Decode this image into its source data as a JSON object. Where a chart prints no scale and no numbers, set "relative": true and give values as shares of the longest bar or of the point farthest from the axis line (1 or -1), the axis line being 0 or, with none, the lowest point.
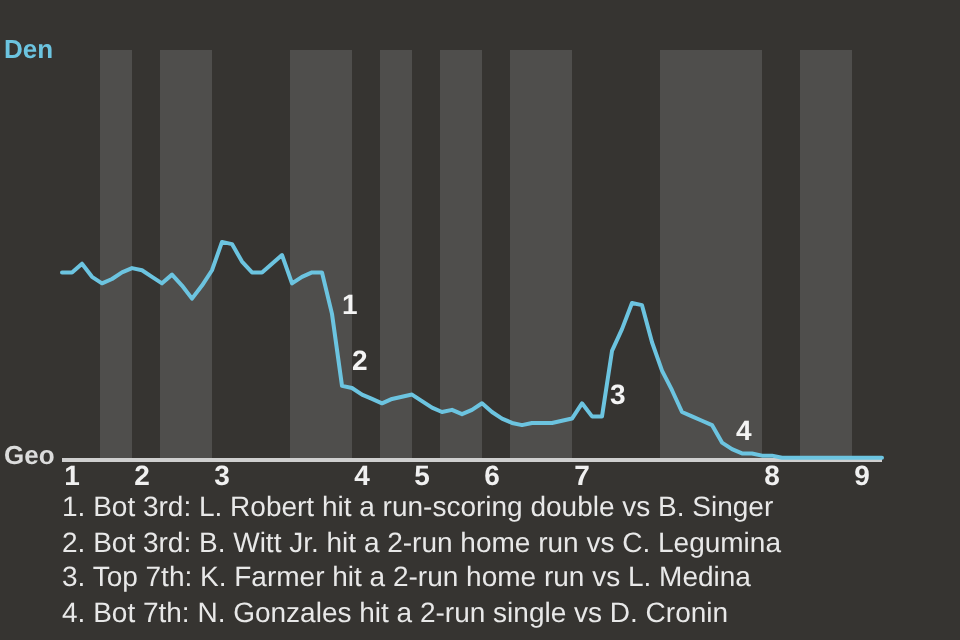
{
  "chart_data": {
    "type": "line",
    "marker": "none",
    "relative": true,
    "categories": [
      null,
      "1",
      null,
      null,
      null,
      null,
      null,
      null,
      "2",
      null,
      null,
      null,
      null,
      null,
      null,
      null,
      "3",
      null,
      null,
      null,
      null,
      null,
      null,
      null,
      null,
      null,
      null,
      null,
      null,
      null,
      "4",
      null,
      null,
      null,
      null,
      null,
      "5",
      null,
      null,
      null,
      null,
      null,
      null,
      "6",
      null,
      null,
      null,
      null,
      null,
      null,
      null,
      null,
      "7",
      null,
      null,
      null,
      null,
      null,
      null,
      null,
      null,
      null,
      null,
      null,
      null,
      null,
      null,
      null,
      null,
      null,
      null,
      "8",
      null,
      null,
      null,
      null,
      null,
      null,
      null,
      null,
      "9",
      null,
      null
    ],
    "series": [
      {
        "color": "#6cc4e0",
        "values": [
          0.86,
          0.86,
          0.9,
          0.84,
          0.81,
          0.83,
          0.86,
          0.88,
          0.87,
          0.84,
          0.81,
          0.85,
          0.8,
          0.74,
          0.8,
          0.87,
          1.0,
          0.99,
          0.91,
          0.86,
          0.86,
          0.9,
          0.94,
          0.81,
          0.84,
          0.86,
          0.86,
          0.67,
          0.34,
          0.33,
          0.3,
          0.28,
          0.26,
          0.28,
          0.29,
          0.3,
          0.27,
          0.24,
          0.22,
          0.23,
          0.21,
          0.23,
          0.26,
          0.22,
          0.19,
          0.17,
          0.16,
          0.17,
          0.17,
          0.17,
          0.18,
          0.19,
          0.26,
          0.2,
          0.2,
          0.5,
          0.6,
          0.72,
          0.71,
          0.54,
          0.41,
          0.32,
          0.22,
          0.2,
          0.18,
          0.16,
          0.08,
          0.05,
          0.03,
          0.03,
          0.02,
          0.02,
          0.01,
          0.01,
          0.01,
          0.01,
          0.01,
          0.01,
          0.01,
          0.01,
          0.01,
          0.01,
          0.01
        ]
      }
    ],
    "annotations": [
      "Den",
      "Geo",
      "1",
      "2",
      "3",
      "4",
      "1. Bot 3rd: L. Robert hit a run-scoring double vs B. Singer",
      "2. Bot 3rd: B. Witt Jr. hit a 2-run home run vs C. Legumina",
      "3. Top 7th: K. Farmer hit a 2-run home run vs L. Medina",
      "4. Bot 7th: N. Gonzales hit a 2-run single vs D. Cronin"
    ]
  }
}
